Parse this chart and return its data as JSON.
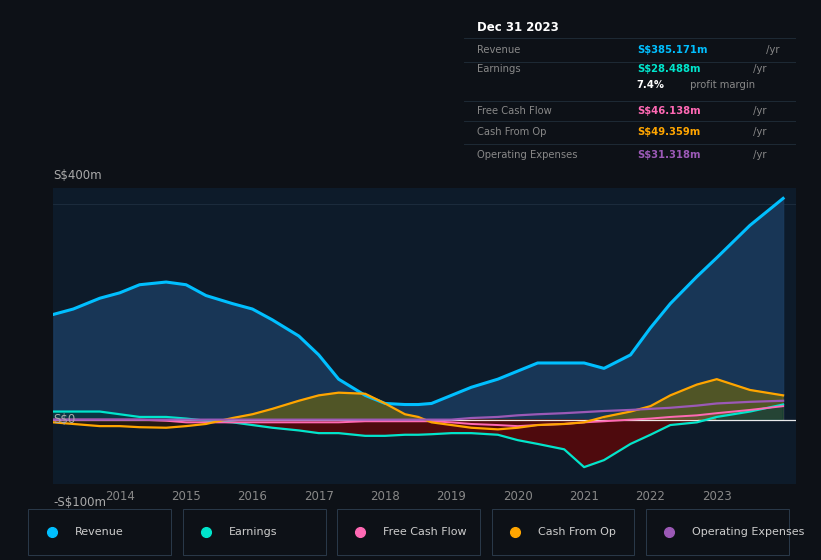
{
  "bg_color": "#0d1117",
  "plot_bg_color": "#0d1b2a",
  "ylabel_top": "S$400m",
  "ylabel_zero": "S$0",
  "ylabel_neg": "-S$100m",
  "years": [
    2013.0,
    2013.3,
    2013.7,
    2014.0,
    2014.3,
    2014.7,
    2015.0,
    2015.3,
    2015.7,
    2016.0,
    2016.3,
    2016.7,
    2017.0,
    2017.3,
    2017.7,
    2018.0,
    2018.3,
    2018.5,
    2018.7,
    2019.0,
    2019.3,
    2019.7,
    2020.0,
    2020.3,
    2020.7,
    2021.0,
    2021.3,
    2021.7,
    2022.0,
    2022.3,
    2022.7,
    2023.0,
    2023.5,
    2024.0
  ],
  "revenue": [
    195,
    205,
    225,
    235,
    250,
    255,
    250,
    230,
    215,
    205,
    185,
    155,
    120,
    75,
    45,
    30,
    28,
    28,
    30,
    45,
    60,
    75,
    90,
    105,
    105,
    105,
    95,
    120,
    170,
    215,
    265,
    300,
    360,
    410
  ],
  "earnings": [
    15,
    15,
    15,
    10,
    5,
    5,
    2,
    -2,
    -5,
    -10,
    -15,
    -20,
    -25,
    -25,
    -30,
    -30,
    -28,
    -28,
    -27,
    -25,
    -25,
    -28,
    -38,
    -45,
    -55,
    -88,
    -75,
    -45,
    -28,
    -10,
    -5,
    5,
    15,
    28
  ],
  "free_cash": [
    0,
    0,
    0,
    0,
    0,
    -2,
    -5,
    -5,
    -5,
    -5,
    -5,
    -5,
    -5,
    -5,
    -3,
    -3,
    -3,
    -3,
    -3,
    -5,
    -8,
    -10,
    -12,
    -10,
    -8,
    -5,
    -3,
    0,
    2,
    5,
    8,
    12,
    18,
    25
  ],
  "cash_from_op": [
    -5,
    -8,
    -12,
    -12,
    -14,
    -15,
    -12,
    -8,
    3,
    10,
    20,
    35,
    45,
    50,
    48,
    30,
    10,
    5,
    -5,
    -10,
    -15,
    -18,
    -15,
    -10,
    -8,
    -5,
    5,
    15,
    25,
    45,
    65,
    75,
    55,
    45
  ],
  "op_expenses": [
    0,
    0,
    0,
    0,
    0,
    0,
    0,
    0,
    0,
    0,
    0,
    0,
    0,
    0,
    0,
    0,
    0,
    0,
    0,
    0,
    3,
    5,
    8,
    10,
    12,
    14,
    16,
    18,
    20,
    22,
    26,
    30,
    33,
    35
  ],
  "revenue_color": "#00bfff",
  "earnings_color": "#00e5cc",
  "free_cash_color": "#ff69b4",
  "cash_from_op_color": "#ffa500",
  "op_expenses_color": "#9b59b6",
  "revenue_fill": "#1a3a5c",
  "earnings_neg_fill": "#5a0808",
  "cash_from_op_fill_pos": "#666600",
  "cash_from_op_fill_neg": "#3a1a00",
  "info_box": {
    "title": "Dec 31 2023",
    "rows": [
      {
        "label": "Revenue",
        "value": "S$385.171m",
        "suffix": " /yr",
        "color": "#00bfff"
      },
      {
        "label": "Earnings",
        "value": "S$28.488m",
        "suffix": " /yr",
        "color": "#00e5cc"
      },
      {
        "label": "",
        "value": "7.4%",
        "suffix": " profit margin",
        "color": "#ffffff"
      },
      {
        "label": "Free Cash Flow",
        "value": "S$46.138m",
        "suffix": " /yr",
        "color": "#ff69b4"
      },
      {
        "label": "Cash From Op",
        "value": "S$49.359m",
        "suffix": " /yr",
        "color": "#ffa500"
      },
      {
        "label": "Operating Expenses",
        "value": "S$31.318m",
        "suffix": " /yr",
        "color": "#9b59b6"
      }
    ]
  },
  "legend_entries": [
    {
      "label": "Revenue",
      "color": "#00bfff"
    },
    {
      "label": "Earnings",
      "color": "#00e5cc"
    },
    {
      "label": "Free Cash Flow",
      "color": "#ff69b4"
    },
    {
      "label": "Cash From Op",
      "color": "#ffa500"
    },
    {
      "label": "Operating Expenses",
      "color": "#9b59b6"
    }
  ]
}
